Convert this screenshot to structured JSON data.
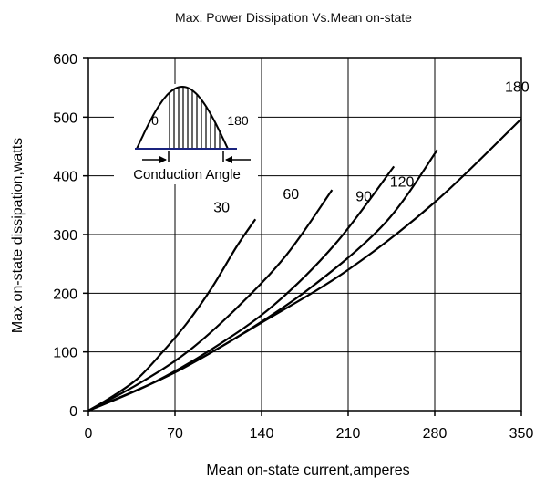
{
  "chart_data": {
    "type": "line",
    "title": "Max. Power Dissipation Vs.Mean on-state",
    "xlabel": "Mean on-state current,amperes",
    "ylabel": "Max on-state dissipation,watts",
    "xlim": [
      0,
      350
    ],
    "ylim": [
      0,
      600
    ],
    "xticks": [
      0,
      70,
      140,
      210,
      280,
      350
    ],
    "yticks": [
      0,
      100,
      200,
      300,
      400,
      500,
      600
    ],
    "xtick_labels": [
      "0",
      "70",
      "140",
      "210",
      "280",
      "350"
    ],
    "ytick_labels": [
      "0",
      "100",
      "200",
      "300",
      "400",
      "500",
      "600"
    ],
    "grid": true,
    "series": [
      {
        "name": "30",
        "x": [
          0,
          20,
          40,
          60,
          80,
          100,
          120,
          135
        ],
        "y": [
          0,
          25,
          55,
          100,
          150,
          210,
          280,
          326
        ]
      },
      {
        "name": "60",
        "x": [
          0,
          40,
          80,
          120,
          160,
          197
        ],
        "y": [
          0,
          45,
          100,
          175,
          265,
          376
        ]
      },
      {
        "name": "90",
        "x": [
          0,
          50,
          100,
          150,
          200,
          247
        ],
        "y": [
          0,
          45,
          105,
          180,
          285,
          416
        ]
      },
      {
        "name": "120",
        "x": [
          0,
          60,
          120,
          180,
          240,
          282
        ],
        "y": [
          0,
          55,
          125,
          210,
          320,
          444
        ]
      },
      {
        "name": "180",
        "x": [
          0,
          70,
          140,
          210,
          280,
          350
        ],
        "y": [
          0,
          65,
          150,
          240,
          355,
          497
        ]
      }
    ],
    "annotations": {
      "inset_left": "0",
      "inset_right": "180",
      "inset_caption": "Conduction Angle"
    }
  }
}
